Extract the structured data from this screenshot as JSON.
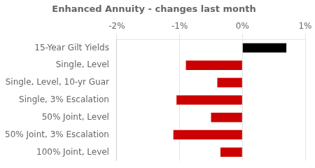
{
  "chart_data": {
    "type": "bar",
    "orientation": "horizontal",
    "title": "Enhanced Annuity - changes last month",
    "categories": [
      "15-Year Gilt Yields",
      "Single, Level",
      "Single, Level, 10-yr Guar",
      "Single, 3% Escalation",
      "50% Joint, Level",
      "50% Joint, 3% Escalation",
      "100% Joint, Level"
    ],
    "values": [
      0.7,
      -0.9,
      -0.4,
      -1.05,
      -0.5,
      -1.1,
      -0.35
    ],
    "colors": [
      "#000000",
      "#cc0000",
      "#cc0000",
      "#cc0000",
      "#cc0000",
      "#cc0000",
      "#cc0000"
    ],
    "xlim": [
      -2.0,
      1.0
    ],
    "xticks": [
      {
        "value": -2.0,
        "label": "-2%"
      },
      {
        "value": -1.0,
        "label": "-1%"
      },
      {
        "value": 0.0,
        "label": "0%"
      },
      {
        "value": 1.0,
        "label": "1%"
      }
    ],
    "grid": true
  }
}
